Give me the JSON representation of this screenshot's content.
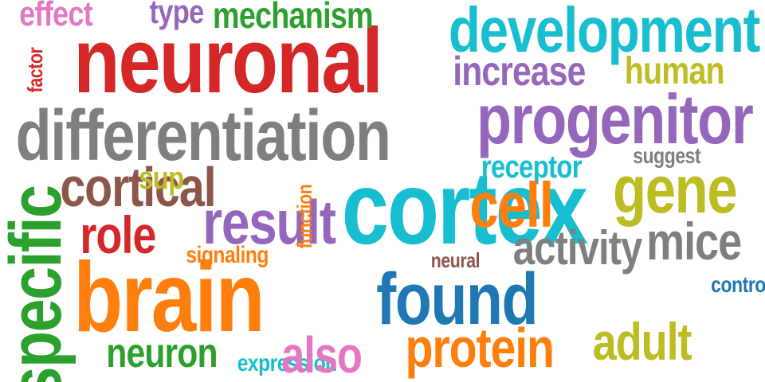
{
  "words": [
    {
      "text": "neuronal",
      "color": "#d62728"
    },
    {
      "text": "differentiation",
      "color": "#7f7f7f"
    },
    {
      "text": "development",
      "color": "#17becf"
    },
    {
      "text": "progenitor",
      "color": "#9467bd"
    },
    {
      "text": "effect",
      "color": "#e377c2"
    },
    {
      "text": "type",
      "color": "#9467bd"
    },
    {
      "text": "mechanism",
      "color": "#2ca02c"
    },
    {
      "text": "increase",
      "color": "#9467bd"
    },
    {
      "text": "human",
      "color": "#bcbd22"
    },
    {
      "text": "cortical",
      "color": "#8c564b"
    },
    {
      "text": "sup",
      "color": "#bcbd22"
    },
    {
      "text": "suggest",
      "color": "#7f7f7f"
    },
    {
      "text": "receptor",
      "color": "#17becf"
    },
    {
      "text": "cortex",
      "color": "#17becf"
    },
    {
      "text": "cell",
      "color": "#ff7f0e"
    },
    {
      "text": "gene",
      "color": "#bcbd22"
    },
    {
      "text": "result",
      "color": "#9467bd"
    },
    {
      "text": "role",
      "color": "#d62728"
    },
    {
      "text": "signaling",
      "color": "#ff7f0e"
    },
    {
      "text": "mice",
      "color": "#7f7f7f"
    },
    {
      "text": "activity",
      "color": "#7f7f7f"
    },
    {
      "text": "neural",
      "color": "#8c564b"
    },
    {
      "text": "brain",
      "color": "#ff7f0e"
    },
    {
      "text": "found",
      "color": "#1f77b4"
    },
    {
      "text": "control",
      "color": "#1f77b4"
    },
    {
      "text": "neuron",
      "color": "#2ca02c"
    },
    {
      "text": "expression",
      "color": "#17becf"
    },
    {
      "text": "also",
      "color": "#e377c2"
    },
    {
      "text": "protein",
      "color": "#ff7f0e"
    },
    {
      "text": "adult",
      "color": "#bcbd22"
    },
    {
      "text": "factor",
      "color": "#d62728"
    },
    {
      "text": "function",
      "color": "#ff7f0e"
    },
    {
      "text": "specific",
      "color": "#2ca02c"
    }
  ]
}
